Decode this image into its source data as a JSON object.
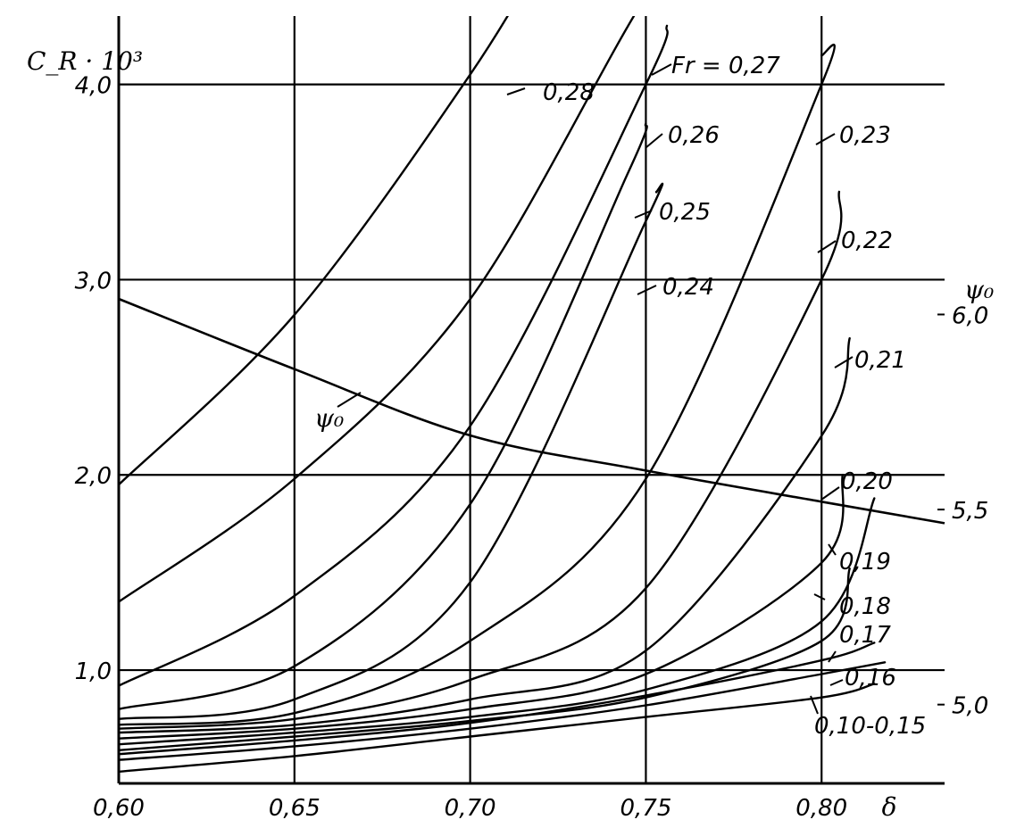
{
  "chart_data": {
    "type": "line",
    "xlabel": "δ",
    "ylabel": "C_R · 10³",
    "y2label": "ψ₀",
    "xlim": [
      0.6,
      0.835
    ],
    "ylim": [
      0.42,
      4.35
    ],
    "y2lim": [
      4.798,
      6.765
    ],
    "grid": true,
    "x_ticks": [
      0.6,
      0.65,
      0.7,
      0.75,
      0.8
    ],
    "x_tick_labels": [
      "0,60",
      "0,65",
      "0,70",
      "0,75",
      "0,80"
    ],
    "y_ticks": [
      1.0,
      2.0,
      3.0,
      4.0
    ],
    "y_tick_labels": [
      "1,0",
      "2,0",
      "3,0",
      "4,0"
    ],
    "y2_ticks": [
      5.0,
      5.5,
      6.0
    ],
    "y2_tick_labels": [
      "5,0",
      "5,5",
      "6,0"
    ],
    "series": [
      {
        "name": "0,28",
        "x": [
          0.6,
          0.65,
          0.7,
          0.725
        ],
        "y": [
          1.95,
          2.82,
          4.05,
          4.8
        ]
      },
      {
        "name": "Fr = 0,27",
        "x": [
          0.6,
          0.65,
          0.7,
          0.75,
          0.775
        ],
        "y": [
          1.35,
          1.98,
          2.9,
          4.45,
          5.0
        ]
      },
      {
        "name": "0,26",
        "x": [
          0.6,
          0.65,
          0.7,
          0.75,
          0.756
        ],
        "y": [
          0.92,
          1.38,
          2.25,
          4.0,
          4.3
        ]
      },
      {
        "name": "0,25",
        "x": [
          0.6,
          0.65,
          0.7,
          0.745,
          0.75
        ],
        "y": [
          0.8,
          1.02,
          1.85,
          3.55,
          3.8
        ]
      },
      {
        "name": "0,24",
        "x": [
          0.6,
          0.65,
          0.7,
          0.75,
          0.753
        ],
        "y": [
          0.75,
          0.85,
          1.45,
          3.3,
          3.45
        ]
      },
      {
        "name": "0,23",
        "x": [
          0.6,
          0.65,
          0.7,
          0.75,
          0.8,
          0.8
        ],
        "y": [
          0.72,
          0.78,
          1.15,
          1.98,
          4.0,
          4.15
        ]
      },
      {
        "name": "0,22",
        "x": [
          0.6,
          0.65,
          0.7,
          0.75,
          0.8,
          0.805
        ],
        "y": [
          0.7,
          0.75,
          0.95,
          1.42,
          3.0,
          3.45
        ]
      },
      {
        "name": "0,21",
        "x": [
          0.6,
          0.65,
          0.7,
          0.75,
          0.8,
          0.808
        ],
        "y": [
          0.68,
          0.72,
          0.85,
          1.1,
          2.2,
          2.7
        ]
      },
      {
        "name": "0,20",
        "x": [
          0.6,
          0.65,
          0.7,
          0.75,
          0.8,
          0.806
        ],
        "y": [
          0.65,
          0.7,
          0.8,
          0.98,
          1.55,
          2.0
        ]
      },
      {
        "name": "0,19",
        "x": [
          0.6,
          0.65,
          0.7,
          0.75,
          0.8,
          0.815
        ],
        "y": [
          0.62,
          0.68,
          0.76,
          0.9,
          1.25,
          1.88
        ]
      },
      {
        "name": "0,18",
        "x": [
          0.6,
          0.65,
          0.7,
          0.75,
          0.8,
          0.808
        ],
        "y": [
          0.59,
          0.66,
          0.74,
          0.86,
          1.15,
          1.52
        ]
      },
      {
        "name": "0,17",
        "x": [
          0.6,
          0.65,
          0.7,
          0.75,
          0.8,
          0.815
        ],
        "y": [
          0.57,
          0.64,
          0.73,
          0.87,
          1.05,
          1.14
        ]
      },
      {
        "name": "0,16",
        "x": [
          0.6,
          0.65,
          0.7,
          0.75,
          0.8,
          0.818
        ],
        "y": [
          0.54,
          0.61,
          0.7,
          0.82,
          0.98,
          1.04
        ]
      },
      {
        "name": "0,10-0,15",
        "x": [
          0.6,
          0.65,
          0.7,
          0.75,
          0.8,
          0.815
        ],
        "y": [
          0.48,
          0.56,
          0.66,
          0.76,
          0.86,
          0.93
        ]
      }
    ],
    "psi_series": {
      "name": "ψ₀",
      "x": [
        0.6,
        0.65,
        0.7,
        0.75,
        0.8,
        0.835
      ],
      "y": [
        6.04,
        5.86,
        5.69,
        5.6,
        5.52,
        5.465
      ]
    },
    "labels": [
      {
        "text": "0,28",
        "series": "0,28"
      },
      {
        "text": "Fr = 0,27",
        "series": "Fr = 0,27"
      },
      {
        "text": "0,26",
        "series": "0,26"
      },
      {
        "text": "0,25",
        "series": "0,25"
      },
      {
        "text": "0,24",
        "series": "0,24"
      },
      {
        "text": "0,23",
        "series": "0,23"
      },
      {
        "text": "0,22",
        "series": "0,22"
      },
      {
        "text": "0,21",
        "series": "0,21"
      },
      {
        "text": "0,20",
        "series": "0,20"
      },
      {
        "text": "0,19",
        "series": "0,19"
      },
      {
        "text": "0,18",
        "series": "0,18"
      },
      {
        "text": "0,17",
        "series": "0,17"
      },
      {
        "text": "0,16",
        "series": "0,16"
      },
      {
        "text": "0,10-0,15",
        "series": "0,10-0,15"
      },
      {
        "text": "ψ₀",
        "series": "ψ₀"
      }
    ]
  }
}
